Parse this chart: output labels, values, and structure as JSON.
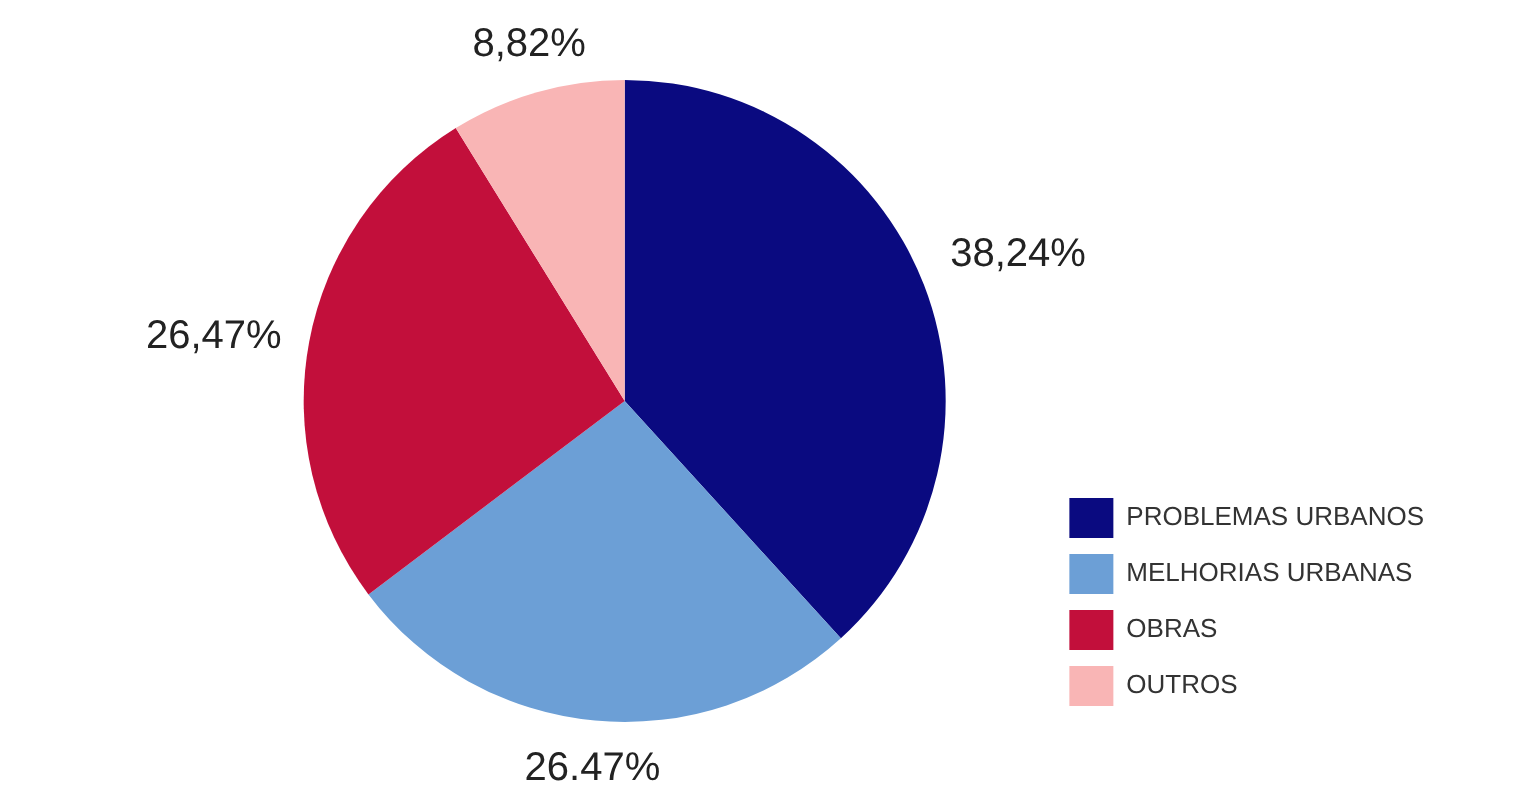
{
  "chart_data": {
    "type": "pie",
    "categories": [
      "PROBLEMAS URBANOS",
      "MELHORIAS URBANAS",
      "OBRAS",
      "OUTROS"
    ],
    "values": [
      38.24,
      26.47,
      26.47,
      8.82
    ],
    "colors": [
      "#0a0a80",
      "#6c9fd6",
      "#c20f3b",
      "#f9b5b5"
    ],
    "value_labels": [
      "38,24%",
      "26.47%",
      "26,47%",
      "8,82%"
    ],
    "legend": "bottom right"
  }
}
